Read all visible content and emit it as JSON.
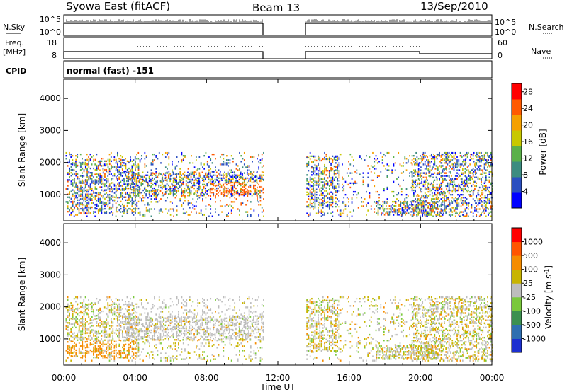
{
  "header": {
    "station": "Syowa East (fitACF)",
    "beam": "Beam 13",
    "date": "13/Sep/2010"
  },
  "panels": {
    "nsky": {
      "left_label": "N.Sky",
      "right_label": "N.Search",
      "left_ticks": [
        "10^5",
        "10^0"
      ],
      "right_ticks": [
        "10^5",
        "10^0"
      ]
    },
    "freq": {
      "left_label_1": "Freq.",
      "left_label_2": "[MHz]",
      "right_label": "Nave",
      "left_ticks": [
        "18",
        "8"
      ],
      "right_ticks": [
        "60",
        "0"
      ]
    },
    "cpid": {
      "label": "CPID",
      "text": "normal (fast) -151"
    }
  },
  "chart_data": [
    {
      "type": "heatmap",
      "name": "power",
      "ylabel": "Slant Range [km]",
      "xlabel": "Time UT",
      "x_ticks": [
        "00:00",
        "04:00",
        "08:00",
        "12:00",
        "16:00",
        "20:00",
        "00:00"
      ],
      "y_ticks": [
        1000,
        2000,
        3000,
        4000
      ],
      "ylim": [
        180,
        4600
      ],
      "xlim_hours": [
        0,
        24
      ],
      "data_gap_hours": [
        11.2,
        13.6
      ],
      "colorbar": {
        "label": "Power [dB]",
        "ticks": [
          4,
          8,
          12,
          16,
          20,
          24,
          28
        ],
        "range": [
          0,
          30
        ],
        "colors": [
          "#0000ff",
          "#2b4fc0",
          "#3d8c80",
          "#5bb04a",
          "#c8c800",
          "#f5a000",
          "#ff5a00",
          "#ff0000"
        ]
      }
    },
    {
      "type": "heatmap",
      "name": "velocity",
      "ylabel": "Slant Range [km]",
      "xlabel": "Time UT",
      "x_ticks": [
        "00:00",
        "04:00",
        "08:00",
        "12:00",
        "16:00",
        "20:00",
        "00:00"
      ],
      "y_ticks": [
        1000,
        2000,
        3000,
        4000
      ],
      "ylim": [
        180,
        4600
      ],
      "xlim_hours": [
        0,
        24
      ],
      "data_gap_hours": [
        11.2,
        13.6
      ],
      "colorbar": {
        "label": "Velocity [m s^-1]",
        "ticks": [
          "1000",
          "500",
          "100",
          "25",
          "-25",
          "-100",
          "-500",
          "-1000"
        ],
        "colors": [
          "#1c2fd0",
          "#2f6fb0",
          "#3c9050",
          "#7ac83c",
          "#bdbdbd",
          "#c8b400",
          "#f58c00",
          "#ff5500",
          "#ff0000"
        ]
      }
    }
  ]
}
